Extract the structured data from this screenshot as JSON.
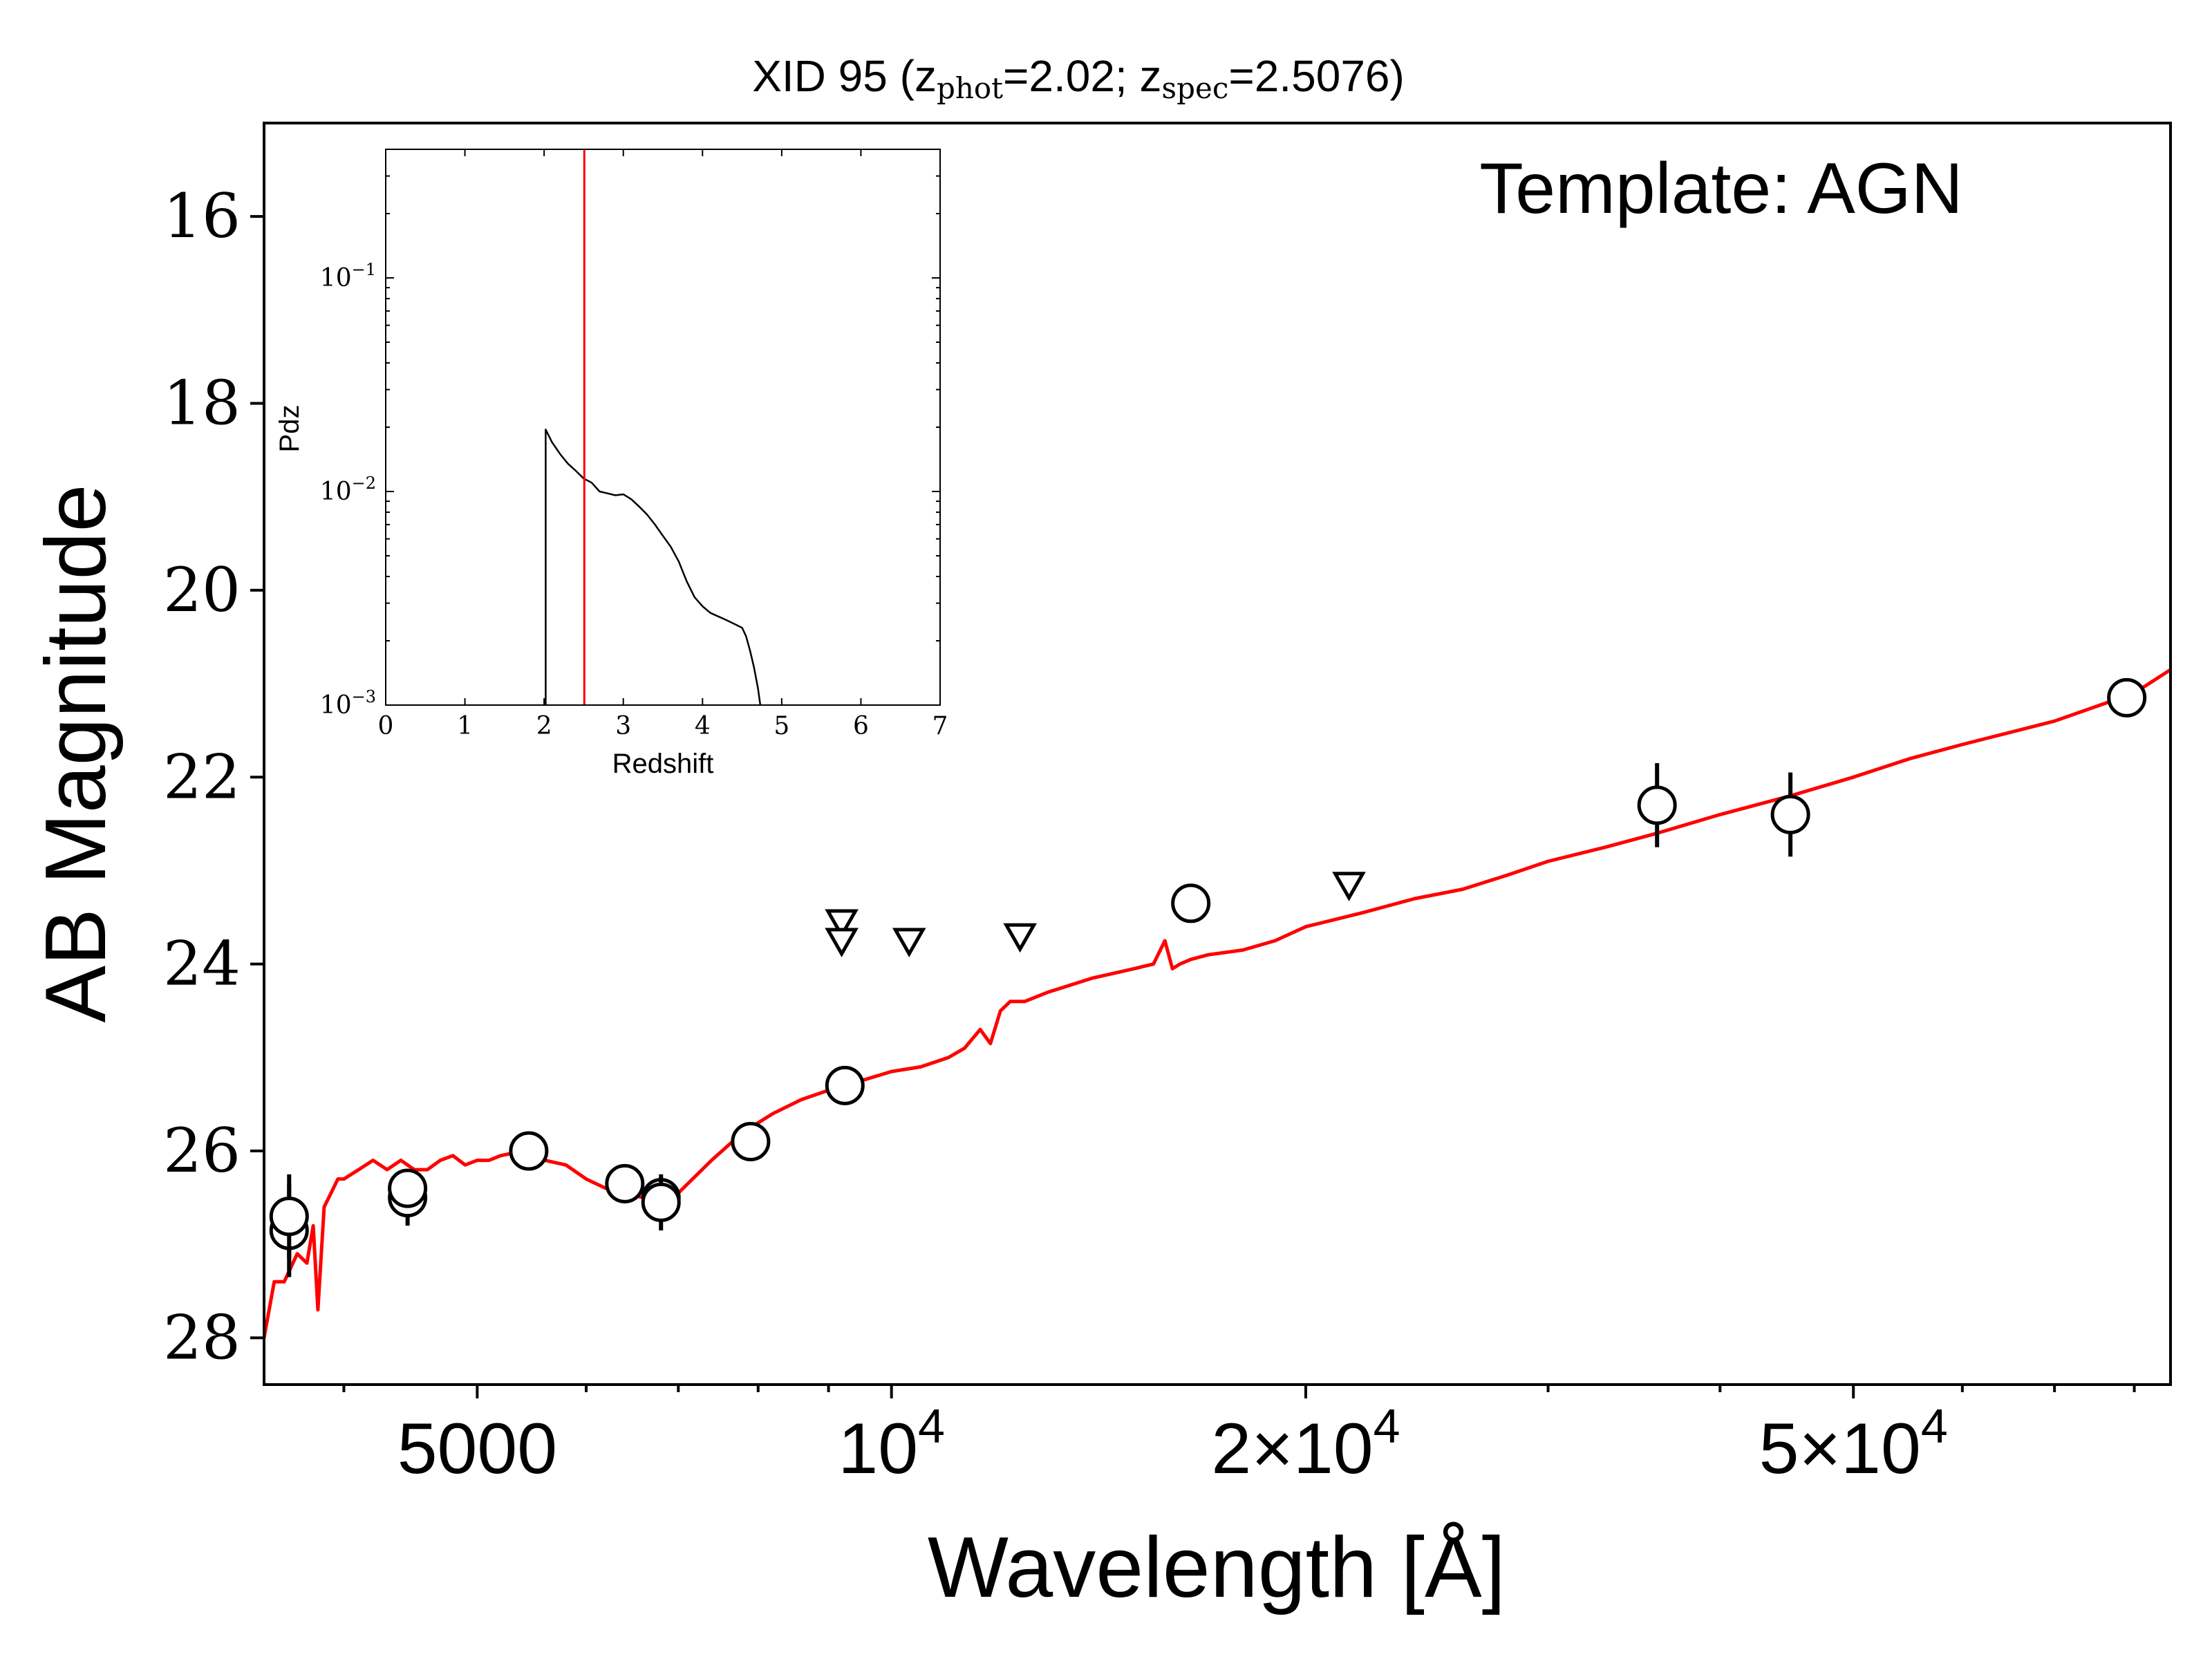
{
  "chart_data": {
    "type": "scatter",
    "title": "XID 95 (z_phot=2.02; z_spec=2.5076)",
    "title_parts": {
      "prefix": "XID 95 (z",
      "sub1": "phot",
      "mid": "=2.02; z",
      "sub2": "spec",
      "suffix": "=2.5076)"
    },
    "annotation": "Template: AGN",
    "xlabel": "Wavelength [Å]",
    "ylabel": "AB Magnitude",
    "xscale": "log",
    "xlim": [
      3500,
      85000
    ],
    "ylim": [
      28.5,
      15.0
    ],
    "yticks": [
      16,
      18,
      20,
      22,
      24,
      26,
      28
    ],
    "xticks": [
      {
        "value": 5000,
        "base": "5000",
        "exp": ""
      },
      {
        "value": 10000,
        "base": "10",
        "exp": "4"
      },
      {
        "value": 20000,
        "base": "2×10",
        "exp": "4"
      },
      {
        "value": 50000,
        "base": "5×10",
        "exp": "4"
      }
    ],
    "x_minor_ticks": [
      4000,
      6000,
      7000,
      8000,
      9000,
      30000,
      40000,
      60000,
      70000,
      80000
    ],
    "points": [
      {
        "x": 3650,
        "y": 26.85,
        "yerr": 0.5
      },
      {
        "x": 3650,
        "y": 26.7,
        "yerr": 0.45
      },
      {
        "x": 4450,
        "y": 26.5,
        "yerr": 0.3
      },
      {
        "x": 4450,
        "y": 26.4,
        "yerr": 0.15
      },
      {
        "x": 5450,
        "y": 26.0,
        "yerr": 0.12
      },
      {
        "x": 6400,
        "y": 26.35,
        "yerr": 0.12
      },
      {
        "x": 6800,
        "y": 26.5,
        "yerr": 0.22
      },
      {
        "x": 6800,
        "y": 26.55,
        "yerr": 0.3
      },
      {
        "x": 7900,
        "y": 25.9,
        "yerr": 0.12
      },
      {
        "x": 9250,
        "y": 25.3,
        "yerr": 0.12
      },
      {
        "x": 16500,
        "y": 23.35,
        "yerr": 0.1
      },
      {
        "x": 36000,
        "y": 22.3,
        "yerr": 0.45
      },
      {
        "x": 45000,
        "y": 22.4,
        "yerr": 0.45
      },
      {
        "x": 79000,
        "y": 21.15,
        "yerr": 0.18
      }
    ],
    "upper_limits": [
      {
        "x": 9200,
        "y": 23.55
      },
      {
        "x": 9200,
        "y": 23.75
      },
      {
        "x": 10300,
        "y": 23.75
      },
      {
        "x": 12400,
        "y": 23.7
      },
      {
        "x": 21500,
        "y": 23.15
      }
    ],
    "template_curve": {
      "color": "#ff0000",
      "x": [
        3500,
        3560,
        3620,
        3700,
        3760,
        3800,
        3830,
        3870,
        3900,
        3930,
        3960,
        4000,
        4100,
        4200,
        4300,
        4400,
        4500,
        4600,
        4700,
        4800,
        4900,
        5000,
        5100,
        5200,
        5400,
        5600,
        5800,
        6000,
        6200,
        6400,
        6600,
        6800,
        7000,
        7400,
        7800,
        8200,
        8600,
        9000,
        9500,
        10000,
        10500,
        11000,
        11300,
        11600,
        11800,
        12000,
        12200,
        12500,
        13000,
        14000,
        15000,
        15500,
        15800,
        16000,
        16200,
        16500,
        17000,
        18000,
        19000,
        20000,
        22000,
        24000,
        26000,
        28000,
        30000,
        33000,
        36000,
        40000,
        45000,
        50000,
        55000,
        60000,
        70000,
        80000,
        85000
      ],
      "y": [
        28.0,
        27.4,
        27.4,
        27.1,
        27.2,
        26.8,
        27.7,
        26.6,
        26.5,
        26.4,
        26.3,
        26.3,
        26.2,
        26.1,
        26.2,
        26.1,
        26.2,
        26.2,
        26.1,
        26.05,
        26.15,
        26.1,
        26.1,
        26.05,
        26.0,
        26.1,
        26.15,
        26.3,
        26.4,
        26.45,
        26.5,
        26.6,
        26.45,
        26.1,
        25.8,
        25.6,
        25.45,
        25.35,
        25.25,
        25.15,
        25.1,
        25.0,
        24.9,
        24.7,
        24.85,
        24.5,
        24.4,
        24.4,
        24.3,
        24.15,
        24.05,
        24.0,
        23.75,
        24.05,
        24.0,
        23.95,
        23.9,
        23.85,
        23.75,
        23.6,
        23.45,
        23.3,
        23.2,
        23.05,
        22.9,
        22.75,
        22.6,
        22.4,
        22.2,
        22.0,
        21.8,
        21.65,
        21.4,
        21.1,
        20.85
      ]
    },
    "inset": {
      "xlabel": "Redshift",
      "ylabel": "Pdz",
      "xlim": [
        0,
        7
      ],
      "yscale": "log",
      "ylim": [
        0.001,
        0.4
      ],
      "xticks": [
        0,
        1,
        2,
        3,
        4,
        5,
        6,
        7
      ],
      "yticks": [
        {
          "value": 0.001,
          "base": "10",
          "exp": "−3"
        },
        {
          "value": 0.01,
          "base": "10",
          "exp": "−2"
        },
        {
          "value": 0.1,
          "base": "10",
          "exp": "−1"
        }
      ],
      "z_spec": 2.5076,
      "z_spec_color": "#ff0000",
      "pdz": {
        "x": [
          2.02,
          2.02,
          2.1,
          2.2,
          2.3,
          2.4,
          2.5,
          2.6,
          2.7,
          2.8,
          2.9,
          3.0,
          3.1,
          3.2,
          3.3,
          3.4,
          3.5,
          3.6,
          3.7,
          3.8,
          3.9,
          4.0,
          4.1,
          4.2,
          4.3,
          4.4,
          4.5,
          4.55,
          4.6,
          4.65,
          4.7,
          4.73
        ],
        "y": [
          0.001,
          0.0195,
          0.017,
          0.015,
          0.0135,
          0.0125,
          0.0115,
          0.011,
          0.01,
          0.0098,
          0.0096,
          0.0097,
          0.0092,
          0.0085,
          0.0078,
          0.007,
          0.0062,
          0.0055,
          0.0047,
          0.0038,
          0.0032,
          0.0029,
          0.0027,
          0.0026,
          0.0025,
          0.0024,
          0.0023,
          0.0021,
          0.0018,
          0.0015,
          0.0012,
          0.001
        ]
      }
    }
  }
}
